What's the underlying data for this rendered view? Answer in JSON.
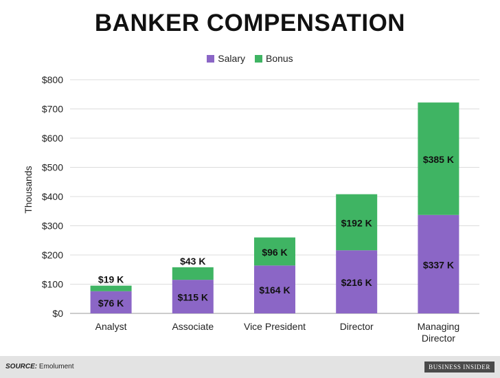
{
  "chart_data": {
    "type": "bar",
    "stacked": true,
    "title": "BANKER COMPENSATION",
    "ylabel": "Thousands",
    "xlabel": "",
    "ylim": [
      0,
      800
    ],
    "yticks": [
      0,
      100,
      200,
      300,
      400,
      500,
      600,
      700,
      800
    ],
    "ytick_labels": [
      "$0",
      "$100",
      "$200",
      "$300",
      "$400",
      "$500",
      "$600",
      "$700",
      "$800"
    ],
    "categories": [
      "Analyst",
      "Associate",
      "Vice President",
      "Director",
      "Managing Director"
    ],
    "series": [
      {
        "name": "Salary",
        "color": "#8b66c6",
        "values": [
          76,
          115,
          164,
          216,
          337
        ],
        "labels": [
          "$76 K",
          "$115 K",
          "$164 K",
          "$216 K",
          "$337 K"
        ]
      },
      {
        "name": "Bonus",
        "color": "#3fb463",
        "values": [
          19,
          43,
          96,
          192,
          385
        ],
        "labels": [
          "$19 K",
          "$43 K",
          "$96 K",
          "$192 K",
          "$385 K"
        ]
      }
    ],
    "grid": true,
    "legend": "top-center"
  },
  "footer": {
    "source_label": "SOURCE:",
    "source_text": "Emolument",
    "brand": "BUSINESS INSIDER"
  }
}
